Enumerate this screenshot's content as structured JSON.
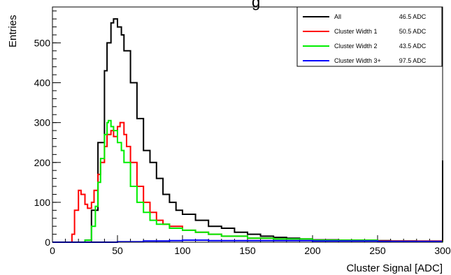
{
  "chart_data": {
    "type": "line",
    "title_fragment": "g",
    "xlabel": "Cluster Signal [ADC]",
    "ylabel": "Entries",
    "xlim": [
      0,
      300
    ],
    "ylim": [
      0,
      590
    ],
    "xticks": [
      0,
      50,
      100,
      150,
      200,
      250,
      300
    ],
    "yticks": [
      0,
      100,
      200,
      300,
      400,
      500
    ],
    "grid": false,
    "legend_position": "top-right",
    "legend": [
      {
        "label": "All",
        "value": "46.5 ADC",
        "color": "#000000"
      },
      {
        "label": "Cluster Width 1",
        "value": "50.5 ADC",
        "color": "#ff0000"
      },
      {
        "label": "Cluster Width 2",
        "value": "43.5 ADC",
        "color": "#00ee00"
      },
      {
        "label": "Cluster Width 3+",
        "value": "97.5 ADC",
        "color": "#0000ff"
      }
    ],
    "series": [
      {
        "name": "All",
        "color": "#000000",
        "x": [
          0,
          10,
          15,
          20,
          25,
          30,
          35,
          40,
          42,
          45,
          47,
          50,
          53,
          55,
          60,
          65,
          70,
          75,
          80,
          85,
          90,
          95,
          100,
          110,
          120,
          130,
          140,
          150,
          160,
          170,
          180,
          190,
          200,
          220,
          240,
          260,
          280,
          299,
          300
        ],
        "y": [
          0,
          0,
          0,
          0,
          5,
          80,
          250,
          430,
          500,
          550,
          560,
          540,
          520,
          480,
          400,
          310,
          230,
          200,
          160,
          120,
          100,
          80,
          70,
          55,
          40,
          35,
          25,
          20,
          15,
          12,
          10,
          8,
          6,
          5,
          4,
          3,
          2,
          2,
          205
        ]
      },
      {
        "name": "Cluster Width 1",
        "color": "#ff0000",
        "x": [
          0,
          12,
          15,
          17,
          20,
          22,
          25,
          27,
          30,
          32,
          35,
          37,
          40,
          42,
          45,
          47,
          50,
          52,
          55,
          57,
          60,
          65,
          70,
          75,
          80,
          85,
          90,
          100,
          110,
          120,
          130,
          150,
          170,
          200,
          250,
          300
        ],
        "y": [
          0,
          0,
          20,
          80,
          130,
          120,
          95,
          85,
          100,
          130,
          170,
          200,
          240,
          270,
          280,
          265,
          290,
          300,
          270,
          240,
          200,
          140,
          100,
          75,
          55,
          45,
          40,
          30,
          25,
          20,
          15,
          10,
          8,
          5,
          3,
          0
        ]
      },
      {
        "name": "Cluster Width 2",
        "color": "#00ee00",
        "x": [
          0,
          20,
          25,
          30,
          33,
          35,
          37,
          40,
          42,
          43,
          45,
          47,
          50,
          53,
          55,
          60,
          65,
          70,
          75,
          80,
          90,
          100,
          110,
          120,
          130,
          150,
          170,
          200,
          250,
          300
        ],
        "y": [
          0,
          0,
          5,
          40,
          90,
          150,
          210,
          270,
          300,
          305,
          290,
          280,
          250,
          230,
          200,
          140,
          100,
          75,
          55,
          45,
          35,
          30,
          25,
          20,
          15,
          10,
          8,
          5,
          2,
          0
        ]
      },
      {
        "name": "Cluster Width 3+",
        "color": "#0000ff",
        "x": [
          0,
          30,
          50,
          70,
          90,
          100,
          120,
          150,
          200,
          250,
          299,
          300
        ],
        "y": [
          0,
          0,
          1,
          3,
          4,
          5,
          4,
          4,
          3,
          2,
          1,
          1
        ]
      }
    ]
  }
}
